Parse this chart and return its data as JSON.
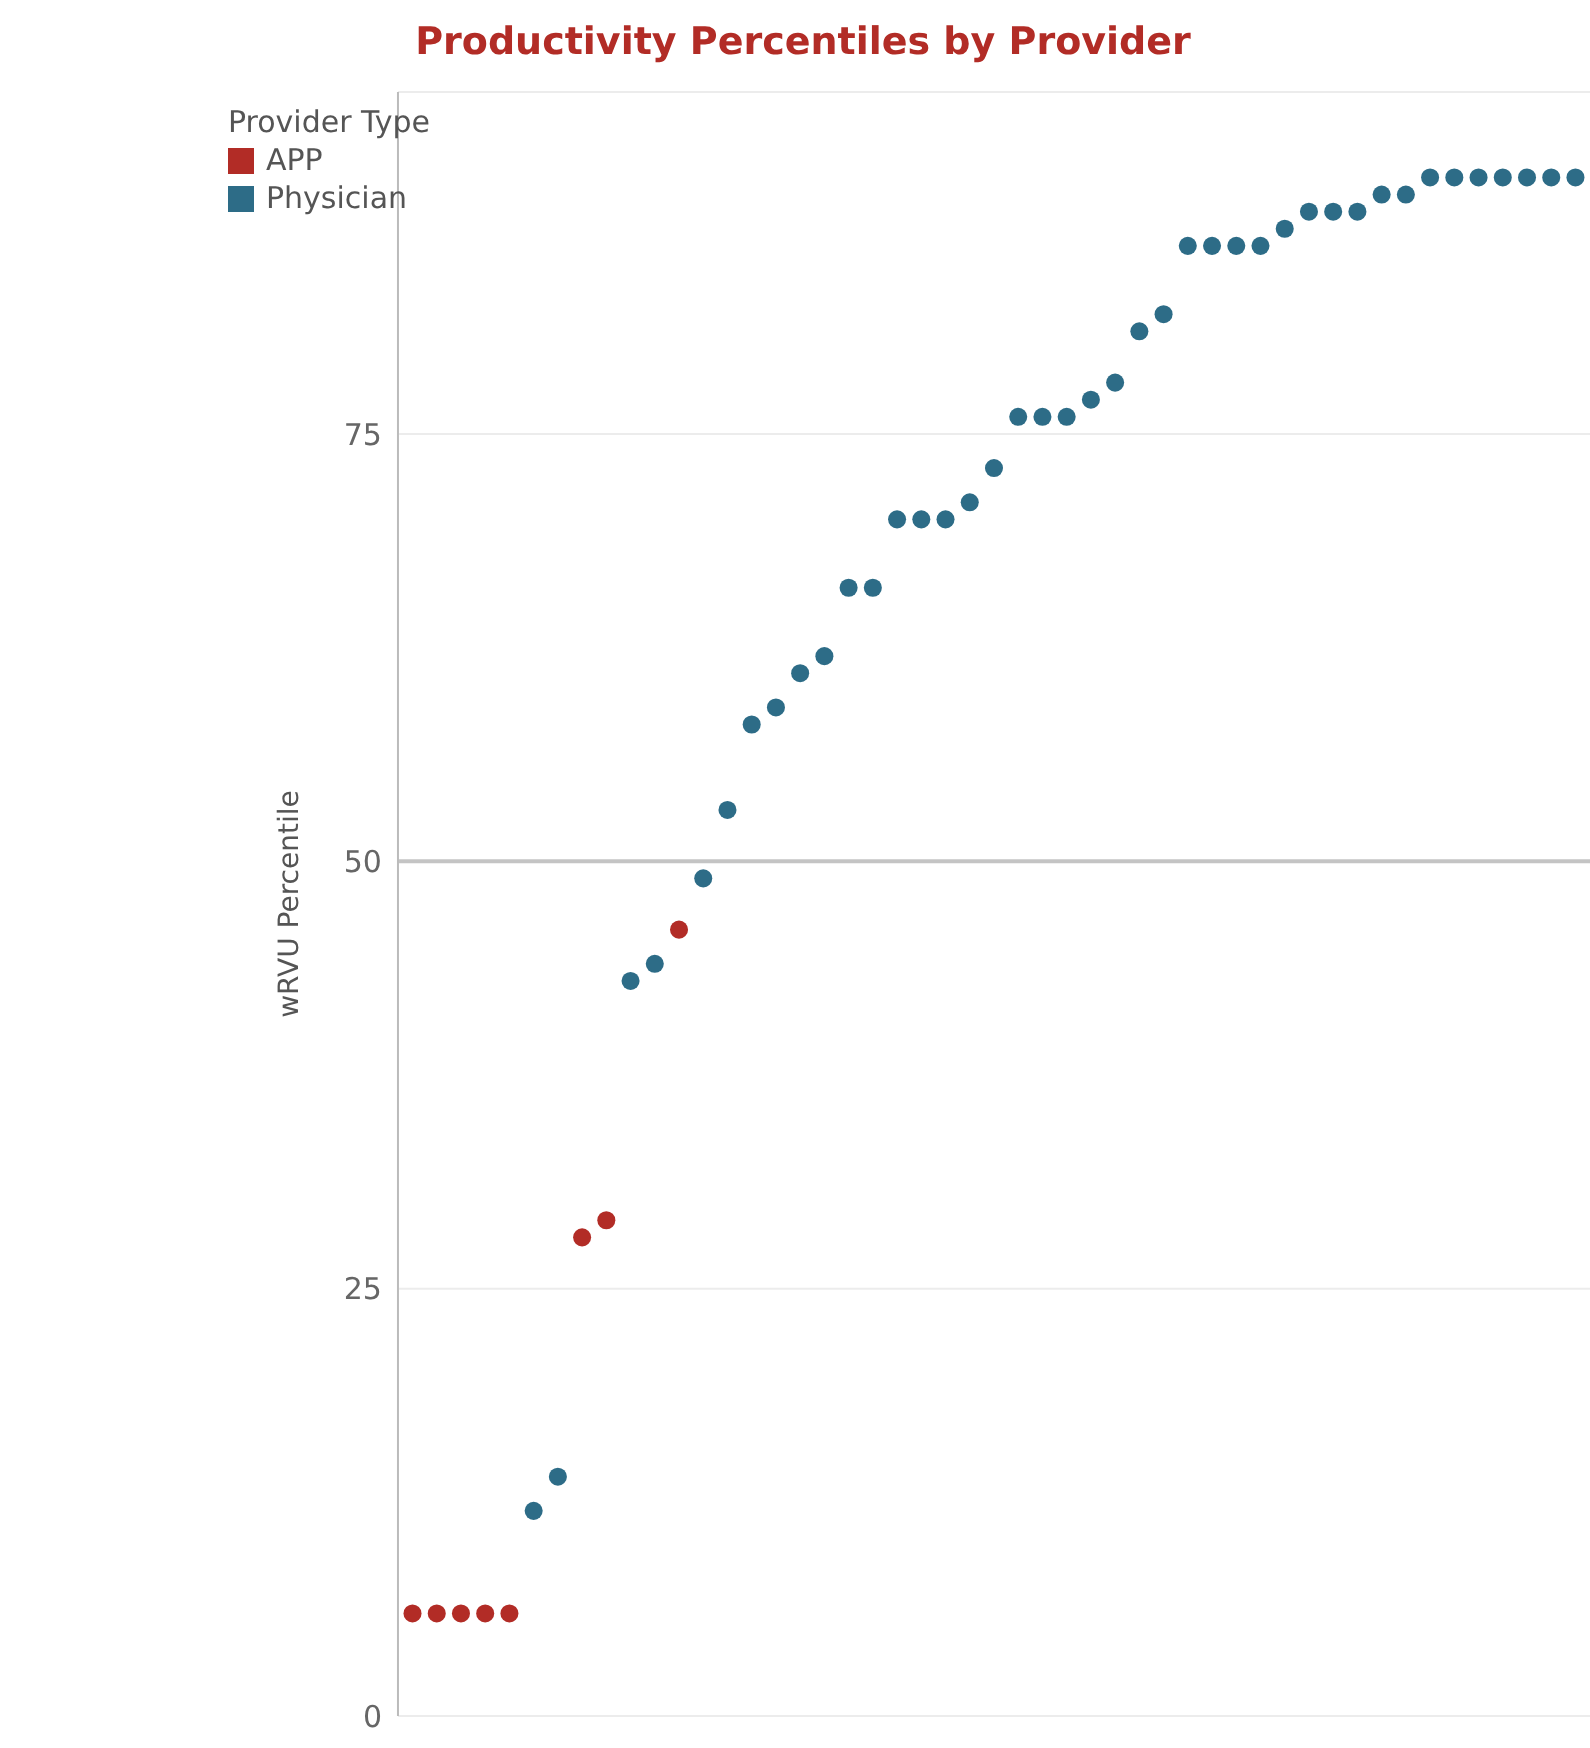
{
  "chart_data": {
    "type": "scatter",
    "title": "Productivity Percentiles by Provider",
    "ylabel": "wRVU Percentile",
    "legend_title": "Provider Type",
    "categories": [
      null,
      null,
      null,
      null,
      null,
      null,
      null,
      null,
      null,
      null,
      null,
      null,
      null,
      null,
      null,
      null,
      null,
      null,
      null,
      null,
      null,
      null,
      null,
      null,
      null,
      null,
      null,
      null,
      null,
      null,
      null,
      null,
      null,
      null,
      null,
      null,
      null,
      null,
      null,
      null,
      null,
      null,
      null,
      null,
      null,
      null,
      null,
      null,
      null
    ],
    "series": [
      {
        "name": "APP",
        "color": "#b22c26",
        "values": [
          6,
          6,
          6,
          6,
          6,
          null,
          null,
          28,
          29,
          null,
          null,
          46,
          null,
          null,
          null,
          null,
          null,
          null,
          null,
          null,
          null,
          null,
          null,
          null,
          null,
          null,
          null,
          null,
          null,
          null,
          null,
          null,
          null,
          null,
          null,
          null,
          null,
          null,
          null,
          null,
          null,
          null,
          null,
          null,
          null,
          null,
          null,
          null,
          null
        ]
      },
      {
        "name": "Physician",
        "color": "#2d6c87",
        "values": [
          null,
          null,
          null,
          null,
          null,
          12,
          14,
          null,
          null,
          43,
          44,
          null,
          49,
          53,
          58,
          59,
          61,
          62,
          66,
          66,
          70,
          70,
          70,
          71,
          73,
          76,
          76,
          76,
          77,
          78,
          81,
          82,
          86,
          86,
          86,
          86,
          87,
          88,
          88,
          88,
          89,
          89,
          90,
          90,
          90,
          90,
          90,
          90,
          90
        ]
      }
    ],
    "ylim": [
      0,
      95
    ],
    "yticks": [
      0,
      25,
      50,
      75
    ],
    "grid": "y",
    "legend": "top left",
    "marker": "circle",
    "ref_lines": [
      {
        "axis": "y",
        "value": 50,
        "color": "#c4c4c4"
      }
    ]
  }
}
